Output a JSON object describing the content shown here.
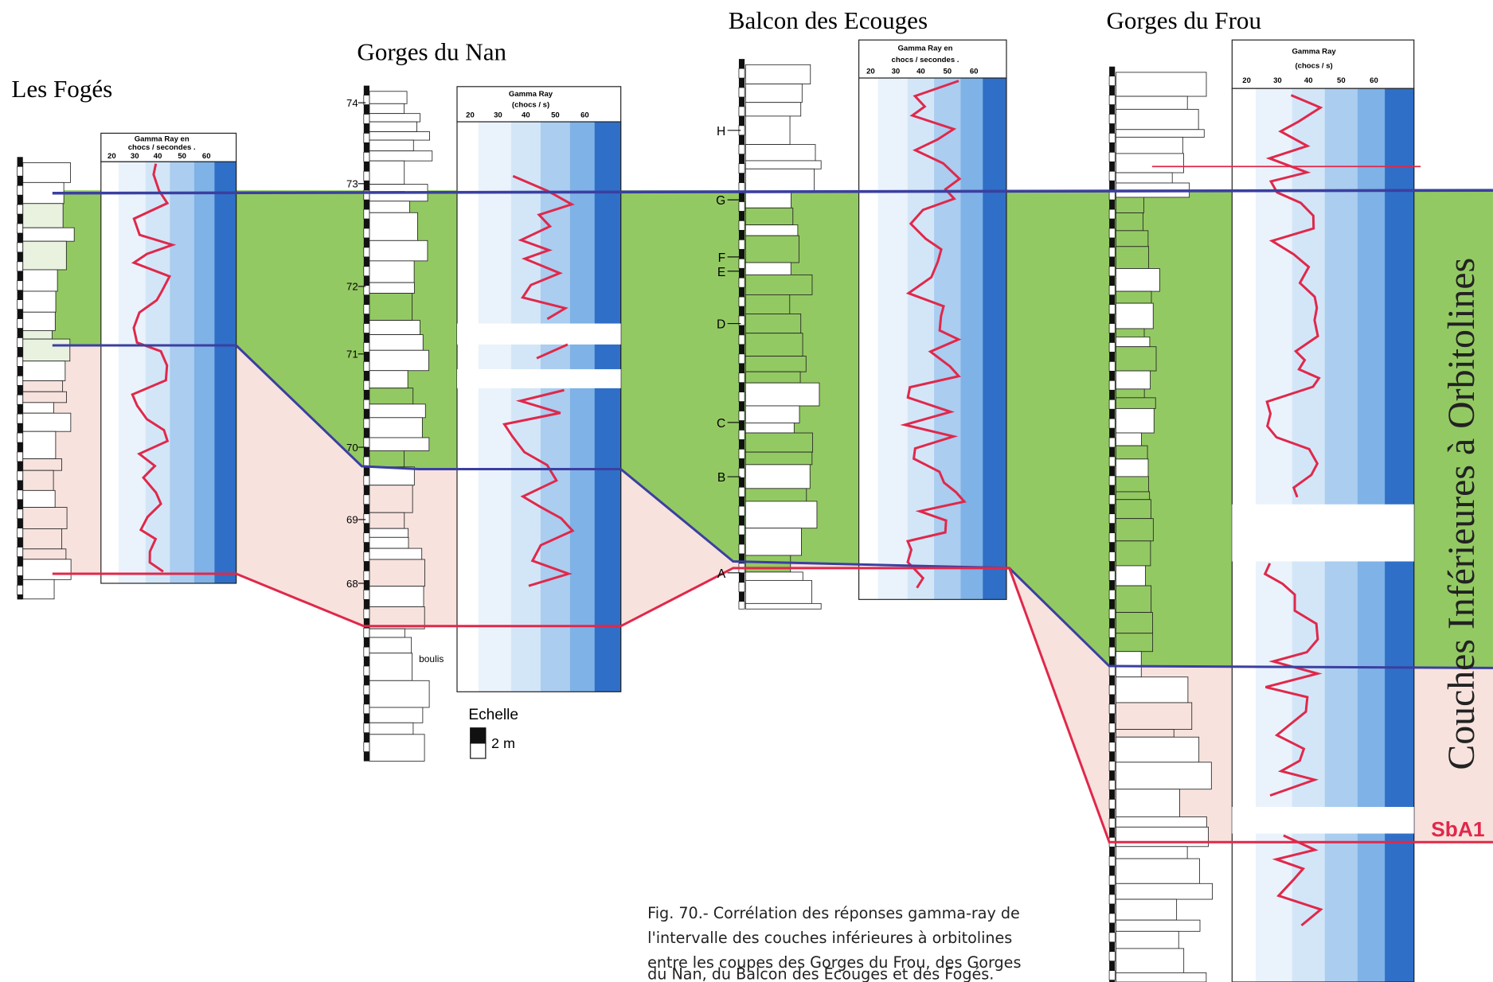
{
  "sections": [
    {
      "title": "Les Fogés",
      "gamma_header": [
        "Gamma Ray en",
        "chocs / secondes ."
      ],
      "scale": [
        "20",
        "30",
        "40",
        "50",
        "60"
      ]
    },
    {
      "title": "Gorges du Nan",
      "gamma_header": [
        "Gamma Ray",
        "(chocs / s)"
      ],
      "scale": [
        "20",
        "30",
        "40",
        "50",
        "60"
      ],
      "levels": [
        "74",
        "73",
        "72",
        "71",
        "70",
        "69",
        "68"
      ],
      "note": "boulis"
    },
    {
      "title": "Balcon des Ecouges",
      "gamma_header": [
        "Gamma Ray en",
        "chocs / secondes ."
      ],
      "scale": [
        "20",
        "30",
        "40",
        "50",
        "60"
      ],
      "markers": [
        "H",
        "G",
        "F",
        "E",
        "D",
        "C",
        "B",
        "A"
      ]
    },
    {
      "title": "Gorges du Frou",
      "gamma_header": [
        "Gamma Ray",
        "(chocs / s)"
      ],
      "scale": [
        "20",
        "30",
        "40",
        "50",
        "60"
      ]
    }
  ],
  "legend": {
    "title": "Echelle",
    "unit": "2 m"
  },
  "side_label": "Couches Inférieures à Orbitolines",
  "boundary_label": "SbA1",
  "caption": [
    "Fig. 70.- Corrélation des réponses gamma-ray de",
    "l'intervalle des couches inférieures à orbitolines",
    "entre les coupes des Gorges du Frou, des Gorges",
    "du Nan, du Balcon des Écouges et des Fogés."
  ]
}
